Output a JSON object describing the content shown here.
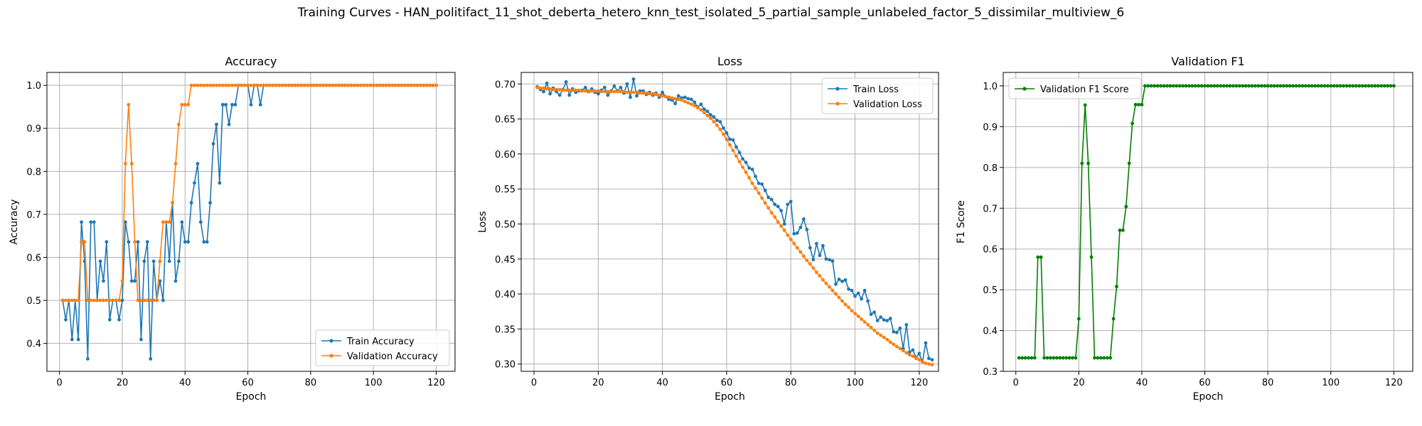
{
  "figure_title": "Training Curves - HAN_politifact_11_shot_deberta_hetero_knn_test_isolated_5_partial_sample_unlabeled_factor_5_dissimilar_multiview_6",
  "colors": {
    "blue": "#1f77b4",
    "orange": "#ff7f0e",
    "green": "#008000",
    "grid": "#b0b0b0"
  },
  "chart_data": [
    {
      "type": "line",
      "title": "Accuracy",
      "xlabel": "Epoch",
      "ylabel": "Accuracy",
      "xlim": [
        -4,
        126
      ],
      "ylim": [
        0.335,
        1.03
      ],
      "xticks": [
        0,
        20,
        40,
        60,
        80,
        100,
        120
      ],
      "yticks": [
        0.4,
        0.5,
        0.6,
        0.7,
        0.8,
        0.9,
        1.0
      ],
      "ytick_labels": [
        "0.4",
        "0.5",
        "0.6",
        "0.7",
        "0.8",
        "0.9",
        "1.0"
      ],
      "grid": true,
      "legend": "lower-right",
      "series": [
        {
          "name": "Train Accuracy",
          "color": "#1f77b4",
          "x_start": 1,
          "values": [
            0.5,
            0.455,
            0.5,
            0.409,
            0.5,
            0.409,
            0.682,
            0.591,
            0.364,
            0.682,
            0.682,
            0.5,
            0.591,
            0.545,
            0.636,
            0.455,
            0.5,
            0.5,
            0.455,
            0.5,
            0.682,
            0.636,
            0.545,
            0.545,
            0.636,
            0.409,
            0.591,
            0.636,
            0.364,
            0.591,
            0.5,
            0.545,
            0.5,
            0.682,
            0.591,
            0.727,
            0.545,
            0.591,
            0.682,
            0.636,
            0.636,
            0.727,
            0.773,
            0.818,
            0.682,
            0.636,
            0.636,
            0.727,
            0.864,
            0.909,
            0.773,
            0.955,
            0.955,
            0.909,
            0.955,
            0.955,
            1.0,
            1.0,
            1.0,
            1.0,
            0.955,
            1.0,
            1.0,
            0.955,
            1.0,
            1.0,
            1.0,
            1.0,
            1.0,
            1.0,
            1.0,
            1.0,
            1.0,
            1.0,
            1.0,
            1.0,
            1.0,
            1.0,
            1.0,
            1.0,
            1.0,
            1.0,
            1.0,
            1.0,
            1.0,
            1.0,
            1.0,
            1.0,
            1.0,
            1.0,
            1.0,
            1.0,
            1.0,
            1.0,
            1.0,
            1.0,
            1.0,
            1.0,
            1.0,
            1.0,
            1.0,
            1.0,
            1.0,
            1.0,
            1.0,
            1.0,
            1.0,
            1.0,
            1.0,
            1.0,
            1.0,
            1.0,
            1.0,
            1.0,
            1.0,
            1.0,
            1.0,
            1.0,
            1.0,
            1.0
          ]
        },
        {
          "name": "Validation Accuracy",
          "color": "#ff7f0e",
          "x_start": 1,
          "values": [
            0.5,
            0.5,
            0.5,
            0.5,
            0.5,
            0.5,
            0.636,
            0.636,
            0.5,
            0.5,
            0.5,
            0.5,
            0.5,
            0.5,
            0.5,
            0.5,
            0.5,
            0.5,
            0.5,
            0.545,
            0.818,
            0.955,
            0.818,
            0.636,
            0.5,
            0.5,
            0.5,
            0.5,
            0.5,
            0.5,
            0.5,
            0.591,
            0.682,
            0.682,
            0.682,
            0.727,
            0.818,
            0.909,
            0.955,
            0.955,
            0.955,
            1.0,
            1.0,
            1.0,
            1.0,
            1.0,
            1.0,
            1.0,
            1.0,
            1.0,
            1.0,
            1.0,
            1.0,
            1.0,
            1.0,
            1.0,
            1.0,
            1.0,
            1.0,
            1.0,
            1.0,
            1.0,
            1.0,
            1.0,
            1.0,
            1.0,
            1.0,
            1.0,
            1.0,
            1.0,
            1.0,
            1.0,
            1.0,
            1.0,
            1.0,
            1.0,
            1.0,
            1.0,
            1.0,
            1.0,
            1.0,
            1.0,
            1.0,
            1.0,
            1.0,
            1.0,
            1.0,
            1.0,
            1.0,
            1.0,
            1.0,
            1.0,
            1.0,
            1.0,
            1.0,
            1.0,
            1.0,
            1.0,
            1.0,
            1.0,
            1.0,
            1.0,
            1.0,
            1.0,
            1.0,
            1.0,
            1.0,
            1.0,
            1.0,
            1.0,
            1.0,
            1.0,
            1.0,
            1.0,
            1.0,
            1.0,
            1.0,
            1.0,
            1.0,
            1.0
          ]
        }
      ]
    },
    {
      "type": "line",
      "title": "Loss",
      "xlabel": "Epoch",
      "ylabel": "Loss",
      "xlim": [
        -4,
        126
      ],
      "ylim": [
        0.2895,
        0.7165
      ],
      "xticks": [
        0,
        20,
        40,
        60,
        80,
        100,
        120
      ],
      "yticks": [
        0.3,
        0.35,
        0.4,
        0.45,
        0.5,
        0.55,
        0.6,
        0.65,
        0.7
      ],
      "ytick_labels": [
        "0.30",
        "0.35",
        "0.40",
        "0.45",
        "0.50",
        "0.55",
        "0.60",
        "0.65",
        "0.70"
      ],
      "grid": true,
      "legend": "top-right",
      "series": [
        {
          "name": "Train Loss",
          "color": "#1f77b4",
          "x_start": 1,
          "values": [
            0.696,
            0.692,
            0.689,
            0.701,
            0.686,
            0.694,
            0.689,
            0.684,
            0.692,
            0.703,
            0.684,
            0.693,
            0.688,
            0.69,
            0.691,
            0.695,
            0.689,
            0.693,
            0.688,
            0.686,
            0.691,
            0.695,
            0.684,
            0.69,
            0.697,
            0.69,
            0.695,
            0.687,
            0.7,
            0.681,
            0.707,
            0.683,
            0.69,
            0.69,
            0.685,
            0.688,
            0.684,
            0.687,
            0.681,
            0.688,
            0.682,
            0.678,
            0.677,
            0.672,
            0.683,
            0.68,
            0.681,
            0.679,
            0.678,
            0.674,
            0.667,
            0.671,
            0.664,
            0.661,
            0.656,
            0.653,
            0.648,
            0.646,
            0.637,
            0.63,
            0.621,
            0.62,
            0.61,
            0.602,
            0.593,
            0.588,
            0.58,
            0.578,
            0.568,
            0.558,
            0.557,
            0.548,
            0.538,
            0.535,
            0.528,
            0.525,
            0.519,
            0.5,
            0.528,
            0.532,
            0.486,
            0.487,
            0.495,
            0.507,
            0.492,
            0.466,
            0.449,
            0.472,
            0.455,
            0.469,
            0.45,
            0.449,
            0.447,
            0.414,
            0.421,
            0.418,
            0.42,
            0.407,
            0.405,
            0.397,
            0.401,
            0.393,
            0.405,
            0.39,
            0.371,
            0.374,
            0.362,
            0.367,
            0.363,
            0.362,
            0.365,
            0.346,
            0.345,
            0.351,
            0.322,
            0.356,
            0.317,
            0.32,
            0.309,
            0.315,
            0.303,
            0.33,
            0.308,
            0.306
          ]
        },
        {
          "name": "Validation Loss",
          "color": "#ff7f0e",
          "x_start": 1,
          "values": [
            0.695,
            0.694,
            0.694,
            0.693,
            0.693,
            0.692,
            0.692,
            0.692,
            0.691,
            0.691,
            0.691,
            0.691,
            0.691,
            0.691,
            0.69,
            0.69,
            0.69,
            0.69,
            0.69,
            0.69,
            0.689,
            0.689,
            0.689,
            0.689,
            0.689,
            0.689,
            0.689,
            0.689,
            0.688,
            0.688,
            0.688,
            0.688,
            0.687,
            0.687,
            0.687,
            0.686,
            0.686,
            0.685,
            0.684,
            0.683,
            0.682,
            0.681,
            0.68,
            0.679,
            0.678,
            0.677,
            0.675,
            0.673,
            0.671,
            0.669,
            0.666,
            0.663,
            0.659,
            0.655,
            0.651,
            0.646,
            0.641,
            0.635,
            0.628,
            0.621,
            0.613,
            0.605,
            0.597,
            0.589,
            0.581,
            0.574,
            0.566,
            0.558,
            0.551,
            0.544,
            0.537,
            0.53,
            0.523,
            0.516,
            0.51,
            0.503,
            0.497,
            0.491,
            0.484,
            0.478,
            0.472,
            0.466,
            0.46,
            0.454,
            0.448,
            0.443,
            0.437,
            0.431,
            0.426,
            0.42,
            0.415,
            0.41,
            0.405,
            0.4,
            0.395,
            0.39,
            0.385,
            0.381,
            0.376,
            0.372,
            0.368,
            0.364,
            0.36,
            0.356,
            0.352,
            0.348,
            0.344,
            0.341,
            0.338,
            0.335,
            0.331,
            0.328,
            0.325,
            0.322,
            0.319,
            0.316,
            0.313,
            0.311,
            0.308,
            0.306,
            0.303,
            0.301,
            0.3,
            0.299
          ]
        }
      ]
    },
    {
      "type": "line",
      "title": "Validation F1",
      "xlabel": "Epoch",
      "ylabel": "F1 Score",
      "xlim": [
        -4,
        126
      ],
      "ylim": [
        0.3,
        1.033
      ],
      "xticks": [
        0,
        20,
        40,
        60,
        80,
        100,
        120
      ],
      "yticks": [
        0.3,
        0.4,
        0.5,
        0.6,
        0.7,
        0.8,
        0.9,
        1.0
      ],
      "ytick_labels": [
        "0.3",
        "0.4",
        "0.5",
        "0.6",
        "0.7",
        "0.8",
        "0.9",
        "1.0"
      ],
      "grid": true,
      "legend": "top-left",
      "series": [
        {
          "name": "Validation F1 Score",
          "color": "#008000",
          "x_start": 1,
          "values": [
            0.333,
            0.333,
            0.333,
            0.333,
            0.333,
            0.333,
            0.58,
            0.58,
            0.333,
            0.333,
            0.333,
            0.333,
            0.333,
            0.333,
            0.333,
            0.333,
            0.333,
            0.333,
            0.333,
            0.429,
            0.81,
            0.953,
            0.81,
            0.58,
            0.333,
            0.333,
            0.333,
            0.333,
            0.333,
            0.333,
            0.429,
            0.508,
            0.646,
            0.646,
            0.704,
            0.81,
            0.908,
            0.954,
            0.954,
            0.954,
            1.0,
            1.0,
            1.0,
            1.0,
            1.0,
            1.0,
            1.0,
            1.0,
            1.0,
            1.0,
            1.0,
            1.0,
            1.0,
            1.0,
            1.0,
            1.0,
            1.0,
            1.0,
            1.0,
            1.0,
            1.0,
            1.0,
            1.0,
            1.0,
            1.0,
            1.0,
            1.0,
            1.0,
            1.0,
            1.0,
            1.0,
            1.0,
            1.0,
            1.0,
            1.0,
            1.0,
            1.0,
            1.0,
            1.0,
            1.0,
            1.0,
            1.0,
            1.0,
            1.0,
            1.0,
            1.0,
            1.0,
            1.0,
            1.0,
            1.0,
            1.0,
            1.0,
            1.0,
            1.0,
            1.0,
            1.0,
            1.0,
            1.0,
            1.0,
            1.0,
            1.0,
            1.0,
            1.0,
            1.0,
            1.0,
            1.0,
            1.0,
            1.0,
            1.0,
            1.0,
            1.0,
            1.0,
            1.0,
            1.0,
            1.0,
            1.0,
            1.0,
            1.0,
            1.0,
            1.0
          ]
        }
      ]
    }
  ]
}
